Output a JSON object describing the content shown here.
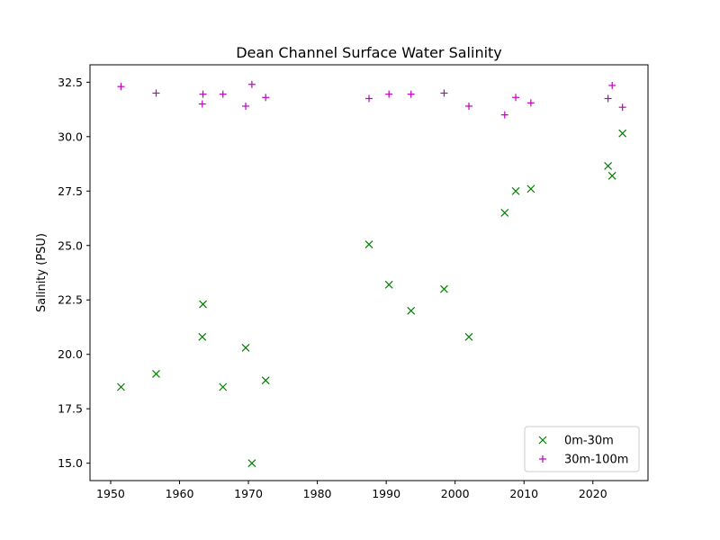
{
  "chart_data": {
    "type": "scatter",
    "title": "Dean Channel Surface Water Salinity",
    "xlabel": "",
    "ylabel": "Salinity (PSU)",
    "xlim": [
      1947,
      2028
    ],
    "ylim": [
      14.2,
      33.3
    ],
    "xticks": [
      1950,
      1960,
      1970,
      1980,
      1990,
      2000,
      2010,
      2020
    ],
    "yticks": [
      15.0,
      17.5,
      20.0,
      22.5,
      25.0,
      27.5,
      30.0,
      32.5
    ],
    "ytick_labels": [
      "15.0",
      "17.5",
      "20.0",
      "22.5",
      "25.0",
      "27.5",
      "30.0",
      "32.5"
    ],
    "grid": false,
    "legend_position": "lower-right",
    "series": [
      {
        "name": "0m-30m",
        "marker": "x",
        "color": "#008000",
        "points": [
          [
            1951.5,
            18.5
          ],
          [
            1956.6,
            19.1
          ],
          [
            1963.3,
            20.8
          ],
          [
            1963.4,
            22.3
          ],
          [
            1966.3,
            18.5
          ],
          [
            1969.6,
            20.3
          ],
          [
            1970.5,
            15.0
          ],
          [
            1972.5,
            18.8
          ],
          [
            1987.5,
            25.05
          ],
          [
            1990.4,
            23.2
          ],
          [
            1993.6,
            22.0
          ],
          [
            1998.4,
            23.0
          ],
          [
            2002.0,
            20.8
          ],
          [
            2007.2,
            26.5
          ],
          [
            2008.8,
            27.5
          ],
          [
            2011.0,
            27.6
          ],
          [
            2022.2,
            28.65
          ],
          [
            2022.8,
            28.2
          ],
          [
            2024.3,
            30.15
          ]
        ]
      },
      {
        "name": "30m-100m",
        "marker": "+",
        "color": "#bf00bf",
        "points": [
          [
            1951.5,
            32.3
          ],
          [
            1956.6,
            32.0
          ],
          [
            1963.3,
            31.5
          ],
          [
            1963.4,
            31.95
          ],
          [
            1966.3,
            31.95
          ],
          [
            1969.6,
            31.4
          ],
          [
            1970.5,
            32.4
          ],
          [
            1972.5,
            31.8
          ],
          [
            1987.5,
            31.75
          ],
          [
            1990.4,
            31.95
          ],
          [
            1993.6,
            31.95
          ],
          [
            1998.4,
            32.0
          ],
          [
            2002.0,
            31.4
          ],
          [
            2007.2,
            31.0
          ],
          [
            2008.8,
            31.8
          ],
          [
            2011.0,
            31.55
          ],
          [
            2022.2,
            31.75
          ],
          [
            2022.8,
            32.35
          ],
          [
            2024.3,
            31.35
          ]
        ]
      }
    ]
  }
}
